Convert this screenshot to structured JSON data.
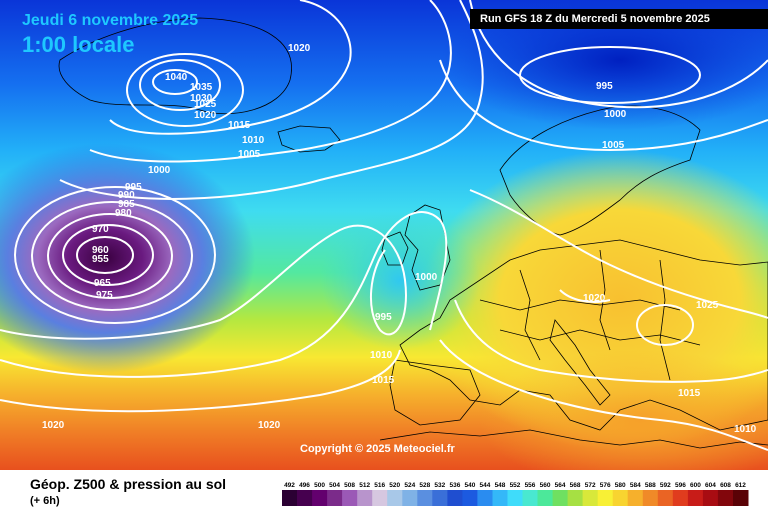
{
  "header": {
    "date": "Jeudi 6 novembre 2025",
    "time": "1:00 locale",
    "run": "Run GFS 18 Z du Mercredi 5 novembre 2025"
  },
  "copyright": "Copyright © 2025 Meteociel.fr",
  "footer": {
    "title": "Géop. Z500 & pression au sol",
    "subtitle": "(+ 6h)"
  },
  "isobar_labels": [
    "1020",
    "1040",
    "1035",
    "1030",
    "1025",
    "1020",
    "1015",
    "1010",
    "1005",
    "1000",
    "995",
    "990",
    "985",
    "980",
    "970",
    "960",
    "955",
    "965",
    "975",
    "995",
    "1000",
    "1005",
    "1000",
    "995",
    "1010",
    "1015",
    "1020",
    "1025",
    "1015",
    "1010",
    "1020",
    "1020"
  ],
  "legend": {
    "values": [
      "492",
      "496",
      "500",
      "504",
      "508",
      "512",
      "516",
      "520",
      "524",
      "528",
      "532",
      "536",
      "540",
      "544",
      "548",
      "552",
      "556",
      "560",
      "564",
      "568",
      "572",
      "576",
      "580",
      "584",
      "588",
      "592",
      "596",
      "600",
      "604",
      "608",
      "612"
    ],
    "colors": [
      "#2b0033",
      "#46004f",
      "#63006e",
      "#7b2b8a",
      "#9b59b6",
      "#b894cc",
      "#d6c7e0",
      "#a8c8e8",
      "#7fb2e6",
      "#5a8fe0",
      "#3a6fd8",
      "#1f4ed0",
      "#1c5ae0",
      "#2a8cf0",
      "#34b8f8",
      "#3fdcfa",
      "#49e8d0",
      "#4ce89a",
      "#6fe061",
      "#a6e043",
      "#d8e83a",
      "#f8f035",
      "#f8d430",
      "#f6b02c",
      "#f08a28",
      "#ea6424",
      "#e03c1e",
      "#c81c18",
      "#a80c12",
      "#82060c",
      "#5a0206"
    ]
  },
  "colors": {
    "header_text": "#1ec8ff",
    "isobar": "#ffffff",
    "land_border": "#000000"
  }
}
